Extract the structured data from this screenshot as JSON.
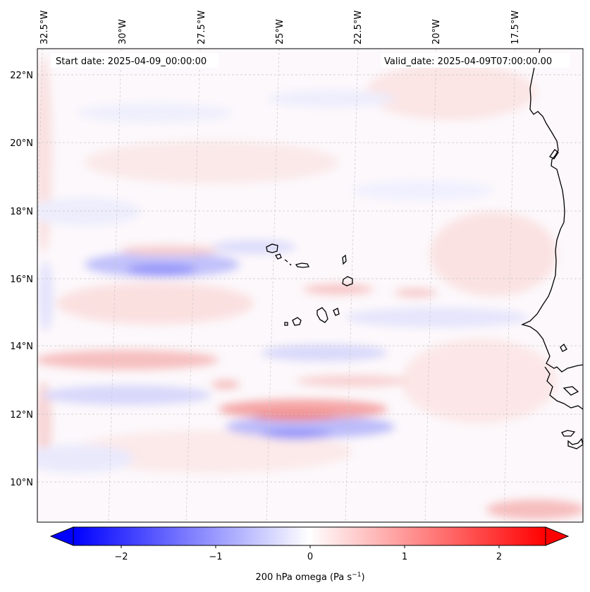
{
  "header": {
    "start_date": "Start date: 2025-04-09_00:00:00",
    "valid_date": "Valid_date: 2025-04-09T07:00:00.00"
  },
  "map": {
    "lon_labels": [
      "32.5°W",
      "30°W",
      "27.5°W",
      "25°W",
      "22.5°W",
      "20°W",
      "17.5°W"
    ],
    "lat_labels": [
      "22°N",
      "20°N",
      "18°N",
      "16°N",
      "14°N",
      "12°N",
      "10°N"
    ],
    "features": [
      "Cape Verde islands",
      "West African coastline"
    ]
  },
  "colorbar": {
    "ticks": [
      "−2",
      "−1",
      "0",
      "1",
      "2"
    ],
    "label": "200 hPa omega (Pa s",
    "label_sup": "−1",
    "label_end": ")",
    "range": [
      -2.7,
      2.7
    ],
    "colors": {
      "negative": "#0000ff",
      "zero": "#ffffff",
      "positive": "#ff0000"
    }
  }
}
